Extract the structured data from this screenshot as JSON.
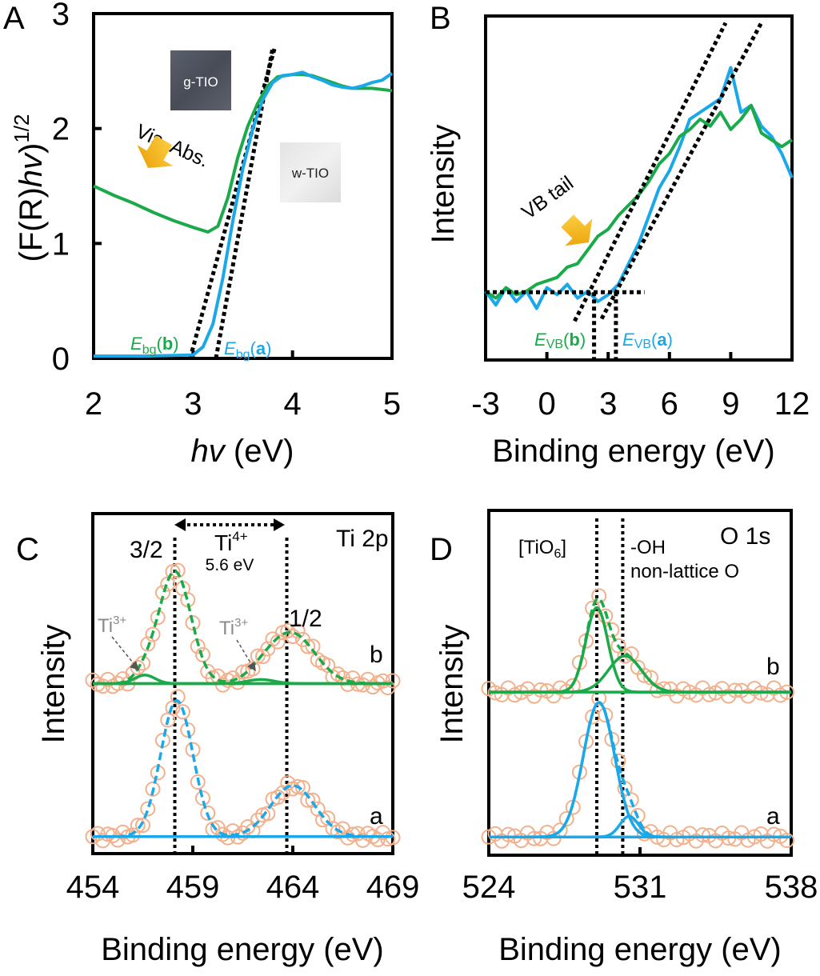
{
  "colors": {
    "a": "#1ba8e8",
    "b": "#1aaa4a",
    "points": "#f2b08c",
    "arrow": "#f5b400",
    "ti3_label": "#8a8a8a"
  },
  "chart_data": [
    {
      "panel": "A",
      "type": "line",
      "xlabel": {
        "italic": "hv",
        "rest": " (eV)"
      },
      "ylabel": {
        "p1": "(F(R)",
        "italic": "hv",
        "p2": ")",
        "sup": "1/2"
      },
      "xlim": [
        2,
        5
      ],
      "ylim": [
        0,
        3
      ],
      "xticks": [
        2,
        3,
        4,
        5
      ],
      "yticks": [
        0,
        1,
        2,
        3
      ],
      "series": [
        {
          "name": "a",
          "x": [
            2,
            2.5,
            3.0,
            3.1,
            3.2,
            3.3,
            3.4,
            3.5,
            3.6,
            3.7,
            3.8,
            3.9,
            4.0,
            4.1,
            4.2,
            4.3,
            4.4,
            4.5,
            4.6,
            4.7,
            4.8,
            4.9,
            5.0
          ],
          "y": [
            0.02,
            0.02,
            0.03,
            0.1,
            0.3,
            0.7,
            1.2,
            1.65,
            2.0,
            2.25,
            2.4,
            2.46,
            2.47,
            2.49,
            2.45,
            2.42,
            2.38,
            2.36,
            2.35,
            2.37,
            2.4,
            2.42,
            2.48
          ]
        },
        {
          "name": "b",
          "x": [
            2,
            2.2,
            2.4,
            2.6,
            2.8,
            3.0,
            3.15,
            3.25,
            3.35,
            3.45,
            3.55,
            3.65,
            3.75,
            3.85,
            4.0,
            4.1,
            4.2,
            4.3,
            4.4,
            4.5,
            4.6,
            4.8,
            5.0
          ],
          "y": [
            1.5,
            1.42,
            1.35,
            1.27,
            1.2,
            1.14,
            1.1,
            1.15,
            1.4,
            1.75,
            2.02,
            2.22,
            2.37,
            2.45,
            2.47,
            2.47,
            2.46,
            2.43,
            2.4,
            2.37,
            2.35,
            2.35,
            2.33
          ]
        }
      ],
      "tangents": [
        {
          "x": [
            2.97,
            3.82
          ],
          "y": [
            0,
            2.7
          ]
        },
        {
          "x": [
            3.23,
            3.8
          ],
          "y": [
            0,
            2.7
          ]
        }
      ],
      "annotations": {
        "ebg_b": {
          "E": "E",
          "sub": "bg",
          "open": "(",
          "letter": "b",
          "close": ")"
        },
        "ebg_a": {
          "E": "E",
          "sub": "bg",
          "open": "(",
          "letter": "a",
          "close": ")"
        },
        "vis_abs": "Vis. Abs.",
        "g_tio": "g-TIO",
        "w_tio": "w-TIO"
      }
    },
    {
      "panel": "B",
      "type": "line",
      "xlabel": "Binding energy (eV)",
      "ylabel": "Intensity",
      "xlim": [
        -3,
        12
      ],
      "ylim": [
        0,
        1
      ],
      "xticks": [
        -3,
        0,
        3,
        6,
        9,
        12
      ],
      "series": [
        {
          "name": "a",
          "x": [
            -3,
            -2.5,
            -2,
            -1.5,
            -1,
            -0.5,
            0,
            0.5,
            1,
            1.5,
            2,
            2.5,
            3,
            3.5,
            4,
            4.5,
            5,
            5.5,
            6,
            6.5,
            7,
            7.5,
            8,
            8.5,
            9,
            9.5,
            10,
            10.5,
            11,
            11.5,
            12
          ],
          "y": [
            0.2,
            0.16,
            0.21,
            0.17,
            0.2,
            0.15,
            0.21,
            0.19,
            0.22,
            0.18,
            0.2,
            0.17,
            0.19,
            0.22,
            0.28,
            0.34,
            0.42,
            0.5,
            0.55,
            0.62,
            0.7,
            0.72,
            0.74,
            0.76,
            0.85,
            0.72,
            0.74,
            0.68,
            0.65,
            0.6,
            0.53
          ]
        },
        {
          "name": "b",
          "x": [
            -3,
            -2.5,
            -2,
            -1.5,
            -1,
            -0.5,
            0,
            0.5,
            1,
            1.5,
            2,
            2.5,
            3,
            3.5,
            4,
            4.5,
            5,
            5.5,
            6,
            6.5,
            7,
            7.5,
            8,
            8.5,
            9,
            9.5,
            10,
            10.5,
            11,
            11.5,
            12
          ],
          "y": [
            0.2,
            0.18,
            0.21,
            0.19,
            0.2,
            0.22,
            0.23,
            0.24,
            0.27,
            0.28,
            0.32,
            0.36,
            0.38,
            0.42,
            0.45,
            0.48,
            0.52,
            0.57,
            0.6,
            0.65,
            0.67,
            0.7,
            0.68,
            0.72,
            0.67,
            0.7,
            0.74,
            0.66,
            0.64,
            0.62,
            0.64
          ]
        }
      ],
      "baseline": {
        "x": [
          -3,
          4.78
        ],
        "y": 0.197
      },
      "tangents": [
        {
          "x": [
            1.36,
            8.75
          ],
          "y": [
            0.113,
            0.98
          ]
        },
        {
          "x": [
            2.68,
            10.5
          ],
          "y": [
            0.12,
            0.98
          ]
        }
      ],
      "evb": {
        "b": 2.31,
        "a": 3.38
      },
      "annotations": {
        "evb_b": {
          "E": "E",
          "sub": "VB",
          "open": "(",
          "letter": "b",
          "close": ")"
        },
        "evb_a": {
          "E": "E",
          "sub": "VB",
          "open": "(",
          "letter": "a",
          "close": ")"
        },
        "vb_tail": "VB tail"
      }
    },
    {
      "panel": "C",
      "type": "line",
      "xlabel": "Binding energy (eV)",
      "ylabel": "Intensity",
      "xlim": [
        454,
        469
      ],
      "ylim": [
        0,
        1
      ],
      "xticks": [
        454,
        459,
        464,
        469
      ],
      "series": [
        {
          "name": "a",
          "baseline": 0.05,
          "peaks": [
            {
              "center": 458.2,
              "height": 0.4,
              "fwhm": 1.9
            },
            {
              "center": 464.0,
              "height": 0.15,
              "fwhm": 2.6
            }
          ],
          "minor_peaks": []
        },
        {
          "name": "b",
          "baseline": 0.5,
          "peaks": [
            {
              "center": 458.1,
              "height": 0.33,
              "fwhm": 1.9
            },
            {
              "center": 463.9,
              "height": 0.15,
              "fwhm": 2.8
            }
          ],
          "minor_peaks": [
            {
              "center": 456.6,
              "height": 0.025,
              "fwhm": 1.2
            },
            {
              "center": 462.4,
              "height": 0.012,
              "fwhm": 1.6
            }
          ]
        }
      ],
      "reference_lines": [
        458.1,
        463.7
      ],
      "annotations": {
        "title": "Ti 2p",
        "p32": "3/2",
        "p12": "1/2",
        "ti4": "Ti",
        "ti4_sup": "4+",
        "split": "5.6 eV",
        "ti3": "Ti",
        "ti3_sup": "3+",
        "label_a": "a",
        "label_b": "b"
      }
    },
    {
      "panel": "D",
      "type": "line",
      "xlabel": "Binding energy (eV)",
      "ylabel": "Intensity",
      "xlim": [
        524,
        538
      ],
      "ylim": [
        0,
        1
      ],
      "xticks": [
        524,
        531,
        538
      ],
      "series": [
        {
          "name": "a",
          "baseline": 0.053,
          "peaks": [
            {
              "center": 529.1,
              "height": 0.39,
              "fwhm": 1.7
            },
            {
              "center": 530.5,
              "height": 0.06,
              "fwhm": 1.0
            }
          ]
        },
        {
          "name": "b",
          "baseline": 0.473,
          "peaks": [
            {
              "center": 529.0,
              "height": 0.245,
              "fwhm": 1.2
            },
            {
              "center": 530.3,
              "height": 0.105,
              "fwhm": 1.8
            }
          ]
        }
      ],
      "reference_lines": [
        529.0,
        530.2
      ],
      "annotations": {
        "title": "O 1s",
        "tio6_open": "[TiO",
        "tio6_sub": "6",
        "tio6_close": "]",
        "oh": "-OH",
        "nonlattice": "non-lattice O",
        "label_a": "a",
        "label_b": "b"
      }
    }
  ],
  "panel_letters": {
    "A": "A",
    "B": "B",
    "C": "C",
    "D": "D"
  }
}
